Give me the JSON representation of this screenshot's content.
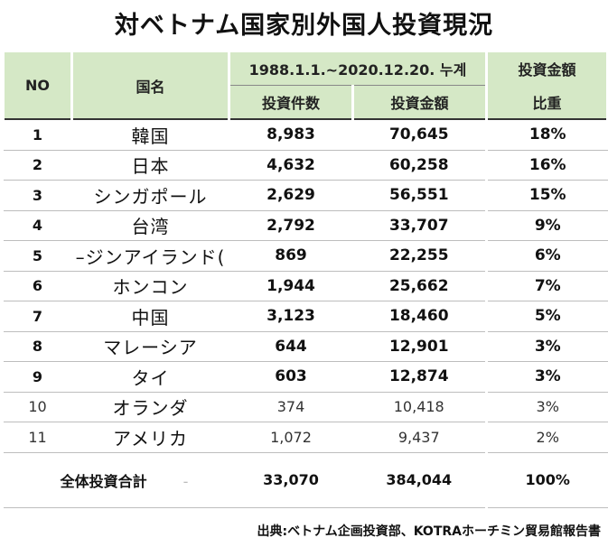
{
  "title": "対ベトナム国家別外国人投資現況",
  "header": {
    "no": "NO",
    "country": "国名",
    "period": "1988.1.1.~2020.12.20. 누계",
    "projects": "投資件数",
    "amount": "投資金額",
    "share_line1": "投資金額",
    "share_line2": "比重"
  },
  "rows": [
    {
      "no": "1",
      "name": "韓国",
      "projects": "8,983",
      "amount": "70,645",
      "share": "18%"
    },
    {
      "no": "2",
      "name": "日本",
      "projects": "4,632",
      "amount": "60,258",
      "share": "16%"
    },
    {
      "no": "3",
      "name": "シンガポール",
      "projects": "2,629",
      "amount": "56,551",
      "share": "15%"
    },
    {
      "no": "4",
      "name": "台湾",
      "projects": "2,792",
      "amount": "33,707",
      "share": "9%"
    },
    {
      "no": "5",
      "name": "–ジンアイランド(",
      "projects": "869",
      "amount": "22,255",
      "share": "6%"
    },
    {
      "no": "6",
      "name": "ホンコン",
      "projects": "1,944",
      "amount": "25,662",
      "share": "7%"
    },
    {
      "no": "7",
      "name": "中国",
      "projects": "3,123",
      "amount": "18,460",
      "share": "5%"
    },
    {
      "no": "8",
      "name": "マレーシア",
      "projects": "644",
      "amount": "12,901",
      "share": "3%"
    },
    {
      "no": "9",
      "name": "タイ",
      "projects": "603",
      "amount": "12,874",
      "share": "3%"
    },
    {
      "no": "10",
      "name": "オランダ",
      "projects": "374",
      "amount": "10,418",
      "share": "3%"
    },
    {
      "no": "11",
      "name": "アメリカ",
      "projects": "1,072",
      "amount": "9,437",
      "share": "2%"
    }
  ],
  "total": {
    "label": "全体投資合計",
    "dash": "-",
    "projects": "33,070",
    "amount": "384,044",
    "share": "100%"
  },
  "source": "出典:ベトナム企画投資部、KOTRAホーチミン貿易館報告書"
}
